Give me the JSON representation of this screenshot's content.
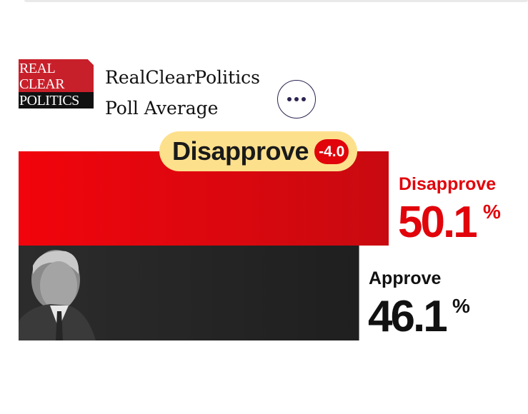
{
  "source": {
    "logo_lines": [
      "REAL",
      "CLEAR",
      "POLITICS"
    ],
    "title_line1": "RealClearPolitics",
    "title_line2": "Poll Average"
  },
  "menu": {
    "icon": "more-horizontal-icon"
  },
  "leader": {
    "label": "Disapprove",
    "delta": "-4.0"
  },
  "colors": {
    "disapprove": "#e1040b",
    "approve": "#252525",
    "badge": "#fde08c"
  },
  "chart_data": {
    "type": "bar",
    "orientation": "horizontal",
    "categories": [
      "Disapprove",
      "Approve"
    ],
    "values": [
      50.1,
      46.1
    ],
    "value_labels": [
      "50.1",
      "46.1"
    ],
    "unit": "%",
    "title": "",
    "xlabel": "",
    "ylabel": "",
    "grid": false,
    "legend": "none"
  }
}
